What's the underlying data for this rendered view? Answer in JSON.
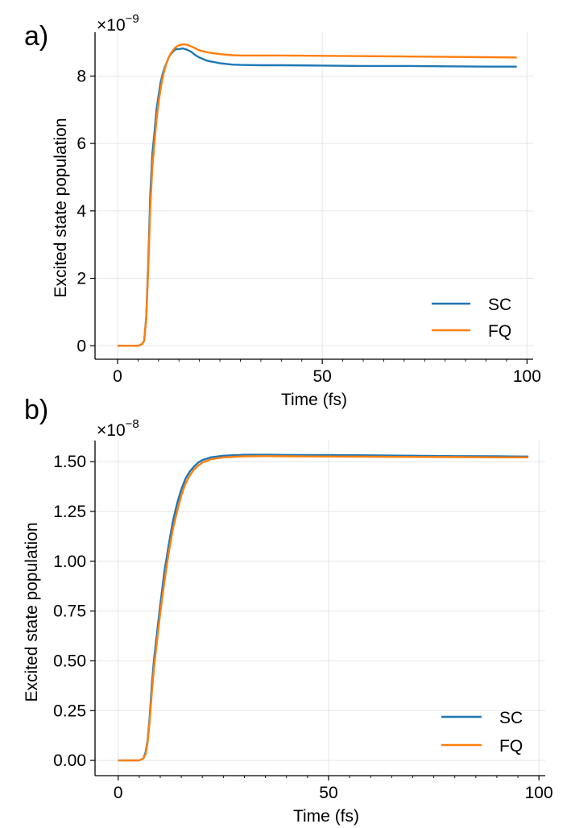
{
  "colors": {
    "sc": "#1f77b4",
    "fq": "#ff7f0e",
    "grid": "#e6e6e6",
    "axis": "#000000"
  },
  "chart_data": [
    {
      "type": "line",
      "panel_label": "a)",
      "title": "",
      "xlabel": "Time (fs)",
      "ylabel": "Excited state population",
      "offset_text": {
        "base": "×10",
        "exponent": "−9"
      },
      "xlim": [
        -5.5,
        101.5
      ],
      "ylim": [
        -0.4,
        9.3
      ],
      "xticks": [
        0,
        50,
        100
      ],
      "xtick_labels": [
        "0",
        "50",
        "100"
      ],
      "yticks": [
        0,
        2,
        4,
        6,
        8
      ],
      "ytick_labels": [
        "0",
        "2",
        "4",
        "6",
        "8"
      ],
      "grid": true,
      "legend_position": "lower-right",
      "series": [
        {
          "name": "SC",
          "color": "#1f77b4",
          "x": [
            0,
            5,
            6,
            6.5,
            7,
            7.5,
            8,
            8.5,
            9,
            9.5,
            10,
            10.5,
            11,
            11.5,
            12,
            12.5,
            13,
            13.5,
            14,
            14.5,
            15,
            16,
            17,
            18,
            19,
            20,
            22,
            25,
            28,
            30,
            35,
            40,
            50,
            60,
            70,
            80,
            90,
            97.5
          ],
          "y": [
            0,
            0,
            0.05,
            0.15,
            0.85,
            2.5,
            4.5,
            5.7,
            6.3,
            7.0,
            7.4,
            7.8,
            8.05,
            8.25,
            8.4,
            8.55,
            8.65,
            8.72,
            8.78,
            8.8,
            8.8,
            8.82,
            8.78,
            8.72,
            8.62,
            8.55,
            8.45,
            8.38,
            8.34,
            8.33,
            8.32,
            8.32,
            8.31,
            8.3,
            8.3,
            8.29,
            8.28,
            8.28
          ]
        },
        {
          "name": "FQ",
          "color": "#ff7f0e",
          "x": [
            0,
            5,
            6,
            6.5,
            7,
            7.5,
            8,
            8.5,
            9,
            9.5,
            10,
            10.5,
            11,
            11.5,
            12,
            12.5,
            13,
            13.5,
            14,
            14.5,
            15,
            16,
            17,
            18,
            19,
            20,
            22,
            25,
            28,
            30,
            35,
            40,
            50,
            60,
            70,
            80,
            90,
            97.5
          ],
          "y": [
            0,
            0,
            0.05,
            0.15,
            0.8,
            2.3,
            4.1,
            5.3,
            6.0,
            6.7,
            7.2,
            7.6,
            7.95,
            8.2,
            8.4,
            8.55,
            8.67,
            8.76,
            8.83,
            8.88,
            8.91,
            8.94,
            8.93,
            8.88,
            8.82,
            8.76,
            8.7,
            8.65,
            8.62,
            8.61,
            8.61,
            8.61,
            8.6,
            8.59,
            8.58,
            8.57,
            8.56,
            8.55
          ]
        }
      ]
    },
    {
      "type": "line",
      "panel_label": "b)",
      "title": "",
      "xlabel": "Time (fs)",
      "ylabel": "Excited state population",
      "offset_text": {
        "base": "×10",
        "exponent": "−8"
      },
      "xlim": [
        -5.5,
        101.5
      ],
      "ylim": [
        -0.0765,
        1.606
      ],
      "xticks": [
        0,
        50,
        100
      ],
      "xtick_labels": [
        "0",
        "50",
        "100"
      ],
      "yticks": [
        0,
        0.25,
        0.5,
        0.75,
        1.0,
        1.25,
        1.5
      ],
      "ytick_labels": [
        "0.00",
        "0.25",
        "0.50",
        "0.75",
        "1.00",
        "1.25",
        "1.50"
      ],
      "grid": true,
      "legend_position": "lower-right",
      "series": [
        {
          "name": "SC",
          "color": "#1f77b4",
          "x": [
            0,
            5,
            6,
            6.5,
            7,
            7.5,
            8,
            8.5,
            9,
            10,
            11,
            12,
            13,
            14,
            15,
            16,
            17,
            18,
            19,
            20,
            22,
            25,
            30,
            35,
            40,
            50,
            60,
            70,
            80,
            90,
            97.5
          ],
          "y": [
            0,
            0,
            0.01,
            0.04,
            0.1,
            0.22,
            0.38,
            0.5,
            0.6,
            0.78,
            0.95,
            1.08,
            1.2,
            1.29,
            1.36,
            1.415,
            1.45,
            1.475,
            1.495,
            1.508,
            1.522,
            1.53,
            1.535,
            1.535,
            1.534,
            1.533,
            1.532,
            1.53,
            1.528,
            1.527,
            1.526
          ]
        },
        {
          "name": "FQ",
          "color": "#ff7f0e",
          "x": [
            0,
            5,
            6,
            6.5,
            7,
            7.5,
            8,
            8.5,
            9,
            10,
            11,
            12,
            13,
            14,
            15,
            16,
            17,
            18,
            19,
            20,
            22,
            25,
            30,
            35,
            40,
            50,
            60,
            70,
            80,
            90,
            97.5
          ],
          "y": [
            0,
            0,
            0.01,
            0.03,
            0.09,
            0.2,
            0.34,
            0.46,
            0.56,
            0.74,
            0.9,
            1.04,
            1.16,
            1.25,
            1.33,
            1.39,
            1.43,
            1.46,
            1.48,
            1.495,
            1.512,
            1.522,
            1.527,
            1.528,
            1.527,
            1.526,
            1.525,
            1.524,
            1.523,
            1.522,
            1.522
          ]
        }
      ]
    }
  ]
}
